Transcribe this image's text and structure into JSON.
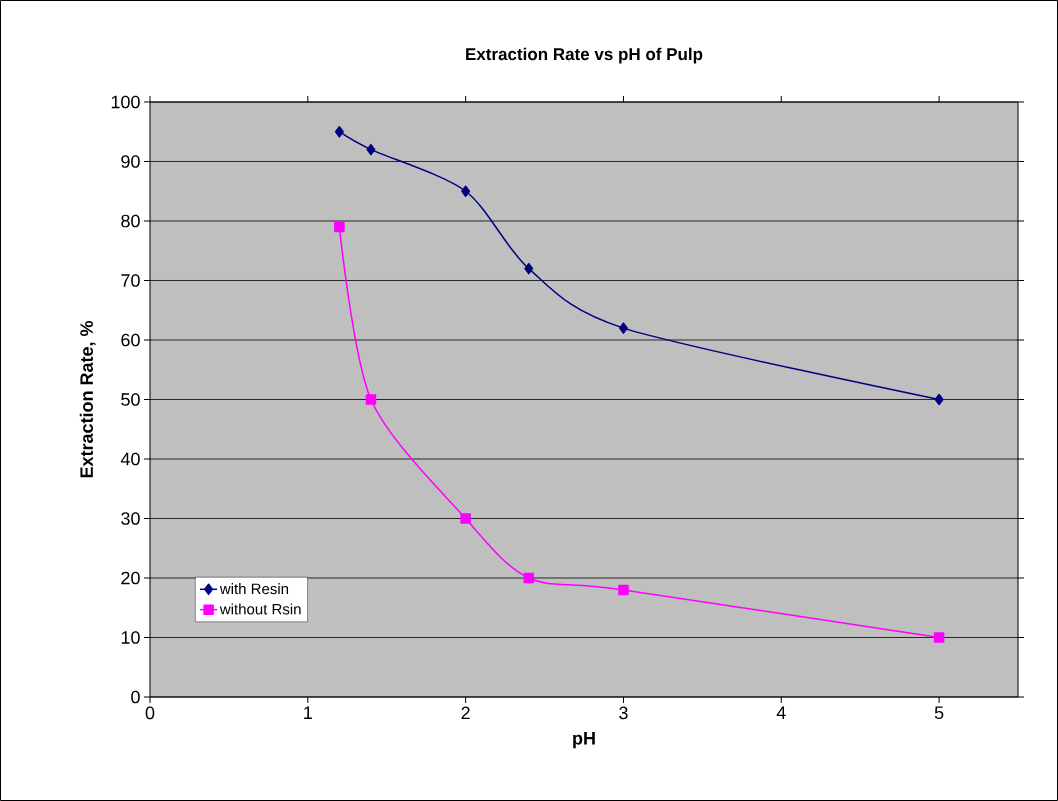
{
  "chart_data": {
    "type": "line",
    "title": "Extraction Rate vs pH of Pulp",
    "xlabel": "pH",
    "ylabel": "Extraction Rate, %",
    "x": [
      1.2,
      1.4,
      2,
      2.4,
      3,
      5
    ],
    "series": [
      {
        "name": "with Resin",
        "color": "#000080",
        "marker": "diamond",
        "values": [
          95,
          92,
          85,
          72,
          62,
          50
        ]
      },
      {
        "name": "without Rsin",
        "color": "#ff00ff",
        "marker": "square",
        "values": [
          79,
          50,
          30,
          20,
          18,
          10
        ]
      }
    ],
    "xlim": [
      0,
      5.5
    ],
    "xticks": [
      0,
      1,
      2,
      3,
      4,
      5
    ],
    "ylim": [
      0,
      100
    ],
    "yticks": [
      0,
      10,
      20,
      30,
      40,
      50,
      60,
      70,
      80,
      90,
      100
    ],
    "grid": "y",
    "legend": "bottom left",
    "line_style": "solid"
  }
}
